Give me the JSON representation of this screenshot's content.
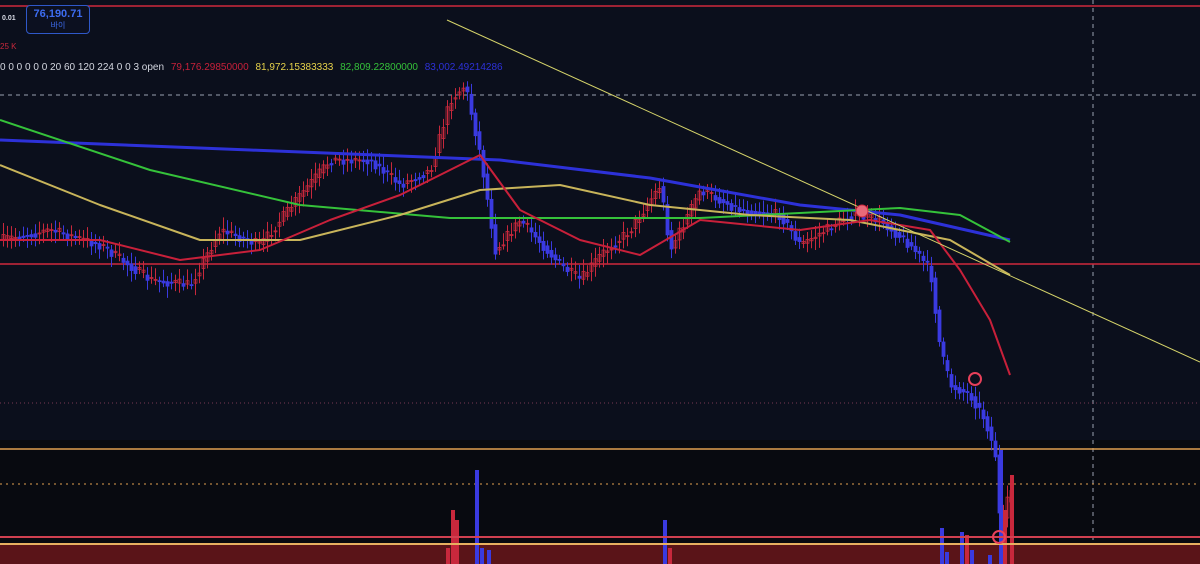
{
  "price_badge": {
    "price": "76,190.71",
    "side": "바이"
  },
  "step_label": "0.01",
  "volume_label": "25 K",
  "indicator_legend": {
    "params": "0 0 0 0 0 0 20 60 120 224 0 0 3 open",
    "values": [
      {
        "text": "79,176.29850000",
        "color": "#c8203a"
      },
      {
        "text": "81,972.15383333",
        "color": "#e6d24a"
      },
      {
        "text": "82,809.22800000",
        "color": "#35c23a"
      },
      {
        "text": "83,002.49214286",
        "color": "#2d31d8"
      }
    ]
  },
  "colors": {
    "background": "#0b0f1c",
    "up_candle": "#c8283c",
    "down_candle": "#3a3ae0",
    "trendline": "#d6d46a",
    "support_line": "#e0a050",
    "resistance_line": "#d0283c"
  }
}
